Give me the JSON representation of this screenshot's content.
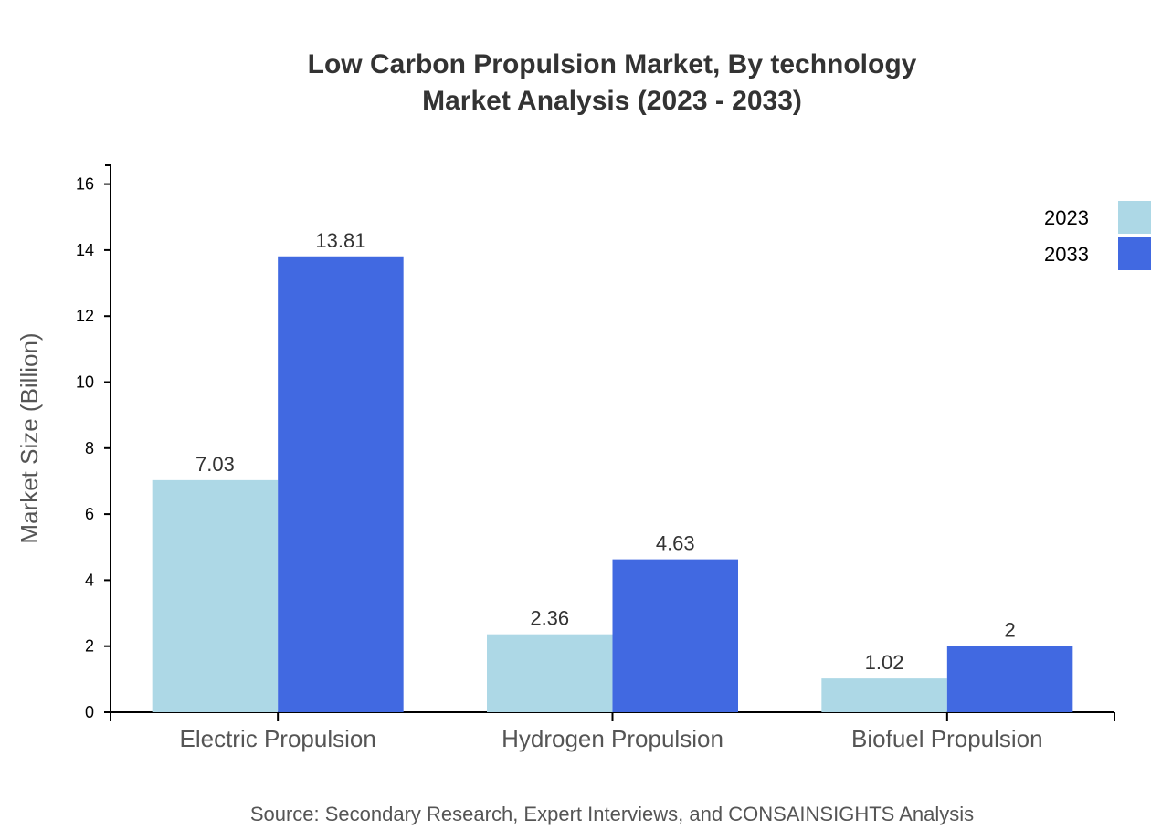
{
  "chart_data": {
    "type": "bar",
    "title": "Low Carbon Propulsion Market, By technology",
    "subtitle": "Market Analysis (2023 - 2033)",
    "ylabel": "Market Size (Billion)",
    "xlabel": "",
    "categories": [
      "Electric Propulsion",
      "Hydrogen Propulsion",
      "Biofuel Propulsion"
    ],
    "series": [
      {
        "name": "2023",
        "values": [
          7.03,
          2.36,
          1.02
        ],
        "color": "#add8e6"
      },
      {
        "name": "2033",
        "values": [
          13.81,
          4.63,
          2
        ],
        "color": "#4169e1"
      }
    ],
    "ylim": [
      0,
      16.57
    ],
    "yticks": [
      0,
      2,
      4,
      6,
      8,
      10,
      12,
      14,
      16
    ],
    "grid": false,
    "legend": "top-right",
    "source": "Source: Secondary Research, Expert Interviews, and CONSAINSIGHTS Analysis"
  }
}
